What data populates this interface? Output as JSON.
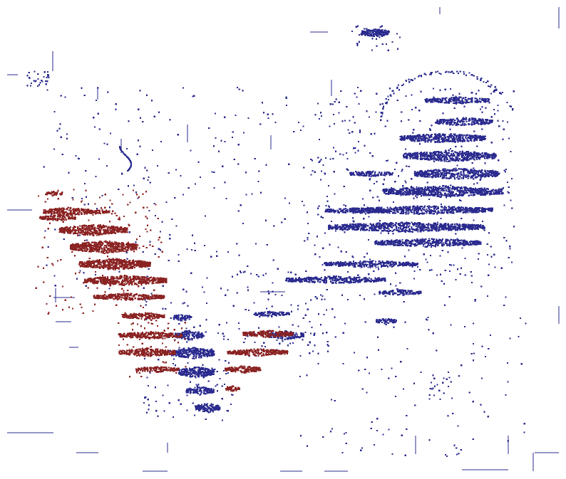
{
  "image": {
    "background": "#ffffff",
    "colors": {
      "blue_dots": "#2b2b8f",
      "red_dots": "#8b2323",
      "lines": "#2b2b8f"
    },
    "regions": [
      {
        "name": "red-stripes-left",
        "color": "red"
      },
      {
        "name": "blue-patch-lower-center",
        "color": "blue"
      },
      {
        "name": "blue-stripes-right",
        "color": "blue"
      },
      {
        "name": "blue-arc-top-right",
        "color": "blue"
      },
      {
        "name": "scattered-fragments",
        "color": "blue"
      }
    ]
  }
}
